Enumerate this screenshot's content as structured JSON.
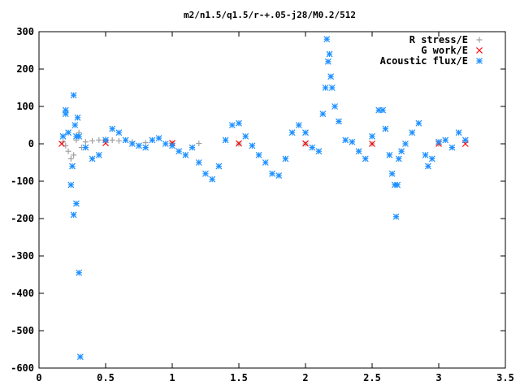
{
  "chart_data": {
    "type": "scatter",
    "title": "m2/n1.5/q1.5/r-+.05-j28/M0.2/512",
    "xlabel": "",
    "ylabel": "",
    "xlim": [
      0,
      3.5
    ],
    "ylim": [
      -600,
      300
    ],
    "x_ticks": [
      "0",
      "0.5",
      "1",
      "1.5",
      "2",
      "2.5",
      "3",
      "3.5"
    ],
    "y_ticks": [
      "300",
      "200",
      "100",
      "0",
      "-100",
      "-200",
      "-300",
      "-400",
      "-500",
      "-600"
    ],
    "x_tick_values": [
      0,
      0.5,
      1,
      1.5,
      2,
      2.5,
      3,
      3.5
    ],
    "y_tick_values": [
      300,
      200,
      100,
      0,
      -100,
      -200,
      -300,
      -400,
      -500,
      -600
    ],
    "grid": false,
    "legend_position": "top-right",
    "series": [
      {
        "name": "R stress/E",
        "marker": "+",
        "color": "#a0a0a0",
        "x": [
          0.18,
          0.2,
          0.22,
          0.24,
          0.26,
          0.28,
          0.3,
          0.32,
          0.35,
          0.4,
          0.45,
          0.5,
          0.55,
          0.6,
          0.7,
          0.8,
          1.0,
          1.2,
          1.5,
          2.0,
          2.5,
          3.0
        ],
        "y": [
          5,
          -5,
          -20,
          -40,
          -30,
          10,
          30,
          -10,
          5,
          8,
          10,
          12,
          10,
          8,
          5,
          3,
          2,
          1,
          0,
          0,
          0,
          0
        ]
      },
      {
        "name": "G work/E",
        "marker": "x",
        "color": "#ff0000",
        "x": [
          0.17,
          0.5,
          1.0,
          1.5,
          2.0,
          2.5,
          3.0,
          3.2
        ],
        "y": [
          0,
          2,
          2,
          1,
          1,
          0,
          0,
          0
        ]
      },
      {
        "name": "Acoustic flux/E",
        "marker": "*",
        "color": "#1e90ff",
        "x": [
          0.18,
          0.2,
          0.2,
          0.22,
          0.24,
          0.25,
          0.26,
          0.26,
          0.27,
          0.28,
          0.28,
          0.29,
          0.3,
          0.3,
          0.31,
          0.35,
          0.4,
          0.45,
          0.5,
          0.55,
          0.6,
          0.65,
          0.7,
          0.75,
          0.8,
          0.85,
          0.9,
          0.95,
          1.0,
          1.05,
          1.1,
          1.15,
          1.2,
          1.25,
          1.3,
          1.35,
          1.4,
          1.45,
          1.5,
          1.55,
          1.6,
          1.65,
          1.7,
          1.75,
          1.8,
          1.85,
          1.9,
          1.95,
          2.0,
          2.05,
          2.1,
          2.13,
          2.15,
          2.16,
          2.17,
          2.18,
          2.19,
          2.2,
          2.22,
          2.25,
          2.3,
          2.35,
          2.4,
          2.45,
          2.5,
          2.55,
          2.58,
          2.6,
          2.63,
          2.65,
          2.67,
          2.68,
          2.69,
          2.7,
          2.72,
          2.75,
          2.8,
          2.85,
          2.9,
          2.92,
          2.95,
          3.0,
          3.05,
          3.1,
          3.15,
          3.2
        ],
        "y": [
          20,
          80,
          90,
          30,
          -110,
          -60,
          130,
          -190,
          50,
          -160,
          20,
          70,
          20,
          -345,
          -570,
          -10,
          -40,
          -30,
          10,
          40,
          30,
          10,
          0,
          -5,
          -10,
          10,
          15,
          0,
          -5,
          -20,
          -30,
          -10,
          -50,
          -80,
          -95,
          -60,
          10,
          50,
          55,
          20,
          -5,
          -30,
          -50,
          -80,
          -85,
          -40,
          30,
          50,
          30,
          -10,
          -20,
          80,
          150,
          280,
          220,
          240,
          180,
          150,
          100,
          60,
          10,
          5,
          -20,
          -40,
          20,
          90,
          90,
          40,
          -30,
          -80,
          -110,
          -195,
          -110,
          -40,
          -20,
          0,
          30,
          55,
          -30,
          -60,
          -40,
          5,
          10,
          -10,
          30,
          10
        ]
      }
    ]
  }
}
